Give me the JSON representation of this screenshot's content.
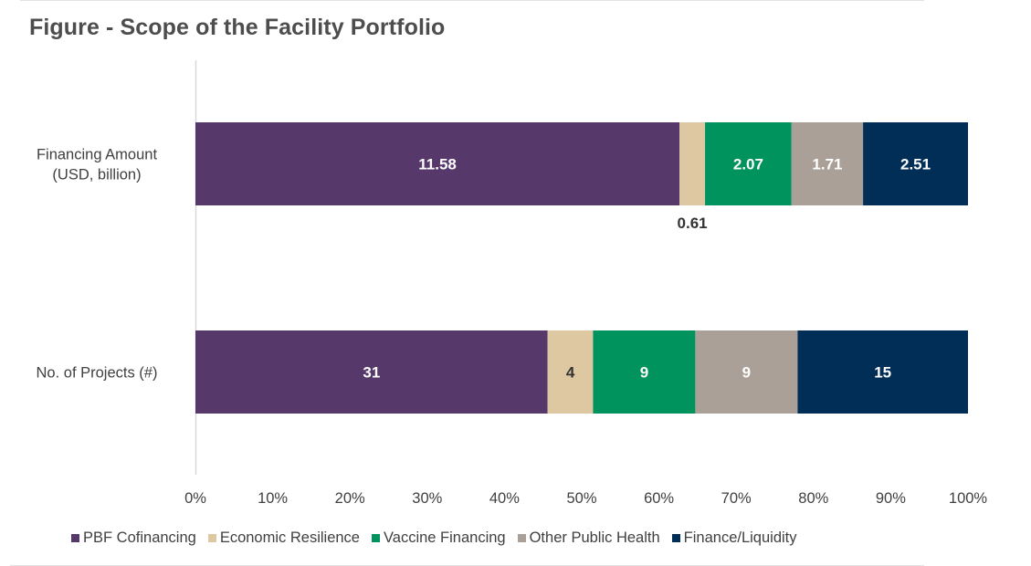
{
  "chart_data": {
    "type": "bar",
    "orientation": "horizontal",
    "stacked": "percent",
    "title": "Figure - Scope of the Facility Portfolio",
    "xlabel": "",
    "ylabel": "",
    "xlim": [
      0,
      100
    ],
    "grid": false,
    "legend_position": "bottom",
    "categories": [
      "Financing Amount (USD, billion)",
      "No. of Projects (#)"
    ],
    "category_lines": [
      [
        "Financing Amount",
        "(USD, billion)"
      ],
      [
        "No. of Projects (#)"
      ]
    ],
    "x_ticks": [
      "0%",
      "10%",
      "20%",
      "30%",
      "40%",
      "50%",
      "60%",
      "70%",
      "80%",
      "90%",
      "100%"
    ],
    "series": [
      {
        "name": "PBF Cofinancing",
        "color": "#56386b",
        "label_color": "#ffffff",
        "values": [
          11.58,
          31
        ],
        "labels": [
          "11.58",
          "31"
        ]
      },
      {
        "name": "Economic Resilience",
        "color": "#ddc8a2",
        "label_color": "#333333",
        "values": [
          0.61,
          4
        ],
        "labels": [
          "0.61",
          "4"
        ],
        "label_outside_first": true
      },
      {
        "name": "Vaccine Financing",
        "color": "#00935e",
        "label_color": "#ffffff",
        "values": [
          2.07,
          9
        ],
        "labels": [
          "2.07",
          "9"
        ]
      },
      {
        "name": "Other Public Health",
        "color": "#aaa098",
        "label_color": "#ffffff",
        "values": [
          1.71,
          9
        ],
        "labels": [
          "1.71",
          "9"
        ]
      },
      {
        "name": "Finance/Liquidity",
        "color": "#002e57",
        "label_color": "#ffffff",
        "values": [
          2.51,
          15
        ],
        "labels": [
          "2.51",
          "15"
        ]
      }
    ]
  }
}
